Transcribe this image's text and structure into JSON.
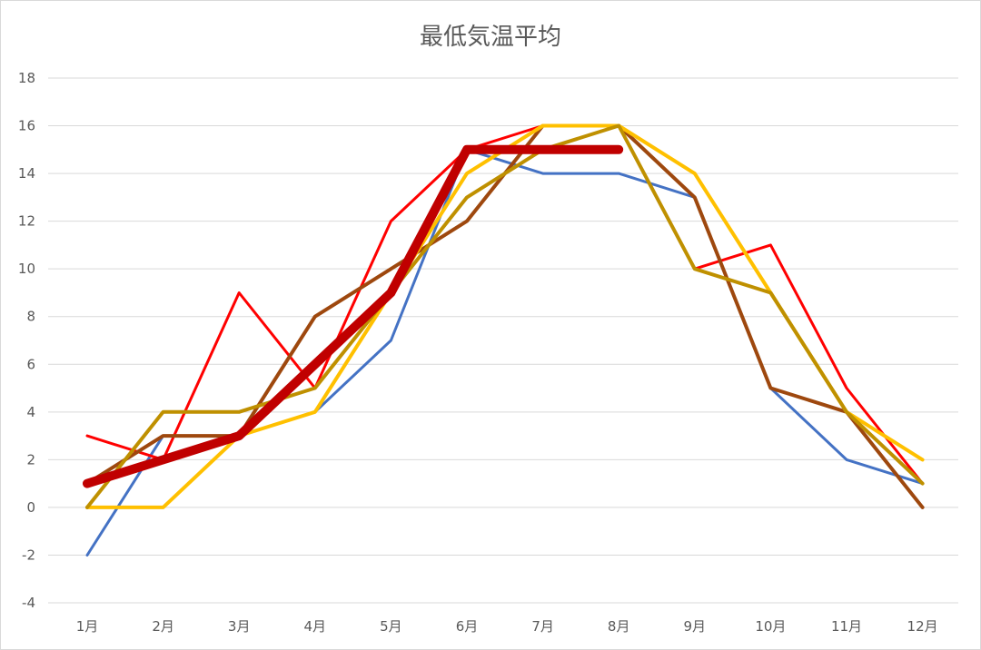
{
  "chart_data": {
    "type": "line",
    "title": "最低気温平均",
    "xlabel": "",
    "ylabel": "",
    "categories": [
      "1月",
      "2月",
      "3月",
      "4月",
      "5月",
      "6月",
      "7月",
      "8月",
      "9月",
      "10月",
      "11月",
      "12月"
    ],
    "ylim": [
      -4,
      18
    ],
    "yticks": [
      -4,
      -2,
      0,
      2,
      4,
      6,
      8,
      10,
      12,
      14,
      16,
      18
    ],
    "grid": true,
    "legend": "none",
    "series": [
      {
        "color": "#4472c4",
        "width": 3,
        "values": [
          -2,
          3,
          3,
          4,
          7,
          15,
          14,
          14,
          13,
          5,
          2,
          1
        ]
      },
      {
        "color": "#ff0000",
        "width": 3,
        "values": [
          3,
          2,
          9,
          5,
          12,
          15,
          16,
          16,
          10,
          11,
          5,
          1
        ]
      },
      {
        "color": "#9e480e",
        "width": 4,
        "values": [
          1,
          3,
          3,
          8,
          10,
          12,
          16,
          16,
          13,
          5,
          4,
          0
        ]
      },
      {
        "color": "#ffc000",
        "width": 4,
        "values": [
          0,
          0,
          3,
          4,
          9,
          14,
          16,
          16,
          14,
          9,
          4,
          2
        ]
      },
      {
        "color": "#bf9000",
        "width": 4,
        "values": [
          0,
          4,
          4,
          5,
          9,
          13,
          15,
          16,
          10,
          9,
          4,
          1
        ]
      },
      {
        "color": "#c00000",
        "width": 10,
        "values": [
          1,
          2,
          3,
          6,
          9,
          15,
          15,
          15,
          null,
          null,
          null,
          null
        ]
      }
    ]
  }
}
